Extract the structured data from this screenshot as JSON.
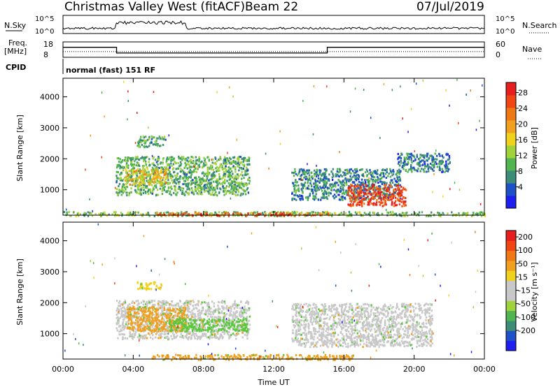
{
  "header": {
    "title": "Christmas Valley West (fitACF)",
    "beam": "Beam 22",
    "date": "07/Jul/2019"
  },
  "top_panels": {
    "nsky_label": "N.Sky",
    "nsearch_label": "N.Search",
    "nsky_ticks": [
      "10^5",
      "10^0"
    ],
    "nsearch_ticks": [
      "10^5",
      "10^0"
    ],
    "freq_label": "Freq.",
    "freq_unit": "[MHz]",
    "freq_ticks": [
      "18",
      "8"
    ],
    "nave_label": "Nave",
    "nave_ticks": [
      "60",
      "0"
    ],
    "cpid_label": "CPID",
    "cpid_text": "normal (fast) 151 RF",
    "freq_steps": [
      {
        "t": 0,
        "freq": 14.5
      },
      {
        "t": 3.05,
        "freq": 10.8
      },
      {
        "t": 15.05,
        "freq": 14.5
      }
    ],
    "nave_level": 22
  },
  "chart_data": [
    {
      "type": "heatmap",
      "ylabel": "Slant Range [km]",
      "colorbar_label": "Power [dB]",
      "colorbar_ticks": [
        "28",
        "24",
        "20",
        "16",
        "12",
        "8",
        "4"
      ],
      "colorbar_values": [
        28,
        24,
        20,
        16,
        12,
        8,
        4
      ],
      "colors": [
        "#1e1ef0",
        "#1e50c8",
        "#3c8c78",
        "#50b450",
        "#a0d23c",
        "#f0d21e",
        "#f0a01e",
        "#f07814",
        "#f04614",
        "#e61e1e"
      ],
      "vmin": 0,
      "vmax": 32,
      "ylim": [
        180,
        4600
      ],
      "yticks": [
        1000,
        2000,
        3000,
        4000
      ],
      "xlim": [
        0,
        24
      ],
      "regions": [
        {
          "t0": 3.0,
          "t1": 10.6,
          "r0": 850,
          "r1": 2100,
          "v": 11
        },
        {
          "t0": 3.5,
          "t1": 6.0,
          "r0": 1200,
          "r1": 1700,
          "v": 18
        },
        {
          "t0": 4.2,
          "t1": 5.8,
          "r0": 2400,
          "r1": 2750,
          "v": 10
        },
        {
          "t0": 0.0,
          "t1": 24.0,
          "r0": 180,
          "r1": 320,
          "v": 12
        },
        {
          "t0": 5.2,
          "t1": 15.2,
          "r0": 180,
          "r1": 280,
          "v": 26
        },
        {
          "t0": 13.0,
          "t1": 19.2,
          "r0": 700,
          "r1": 1700,
          "v": 8
        },
        {
          "t0": 16.2,
          "t1": 19.5,
          "r0": 500,
          "r1": 1200,
          "v": 28
        },
        {
          "t0": 19.0,
          "t1": 22.0,
          "r0": 1600,
          "r1": 2200,
          "v": 7
        }
      ]
    },
    {
      "type": "heatmap",
      "ylabel": "Slant Range [km]",
      "colorbar_label": "Velocity [m s⁻¹]",
      "colorbar_ticks": [
        "200",
        "100",
        "50",
        "15",
        "-15",
        "-50",
        "-100",
        "-200"
      ],
      "colorbar_values": [
        200,
        100,
        50,
        15,
        -15,
        -50,
        -100,
        -200
      ],
      "colors": [
        "#1e1ef0",
        "#1e50c8",
        "#3c8c78",
        "#50b450",
        "#a0d23c",
        "#c8c8c8",
        "#c8c8c8",
        "#f0d21e",
        "#f0a01e",
        "#f07814",
        "#f04614",
        "#e61e1e"
      ],
      "ylim": [
        180,
        4600
      ],
      "yticks": [
        1000,
        2000,
        3000,
        4000
      ],
      "xlim": [
        0,
        24
      ],
      "xticks": [
        "00:00",
        "04:00",
        "08:00",
        "12:00",
        "16:00",
        "20:00",
        "00:00"
      ],
      "xlabel": "Time UT",
      "regions": [
        {
          "t0": 3.0,
          "t1": 10.6,
          "r0": 850,
          "r1": 2100,
          "v": "gray"
        },
        {
          "t0": 3.6,
          "t1": 7.0,
          "r0": 1100,
          "r1": 1900,
          "v": "orange"
        },
        {
          "t0": 6.0,
          "t1": 10.5,
          "r0": 1100,
          "r1": 1500,
          "v": "green"
        },
        {
          "t0": 4.2,
          "t1": 5.6,
          "r0": 2450,
          "r1": 2700,
          "v": "yellow"
        },
        {
          "t0": 5.0,
          "t1": 16.5,
          "r0": 180,
          "r1": 350,
          "v": "orange"
        },
        {
          "t0": 13.0,
          "t1": 21.0,
          "r0": 600,
          "r1": 2000,
          "v": "gray"
        }
      ]
    }
  ],
  "colors": {
    "velocity_gray": "#c8c8c8",
    "velocity_orange": "#f0a01e",
    "velocity_green": "#5ac83c",
    "velocity_yellow": "#f0d21e"
  }
}
